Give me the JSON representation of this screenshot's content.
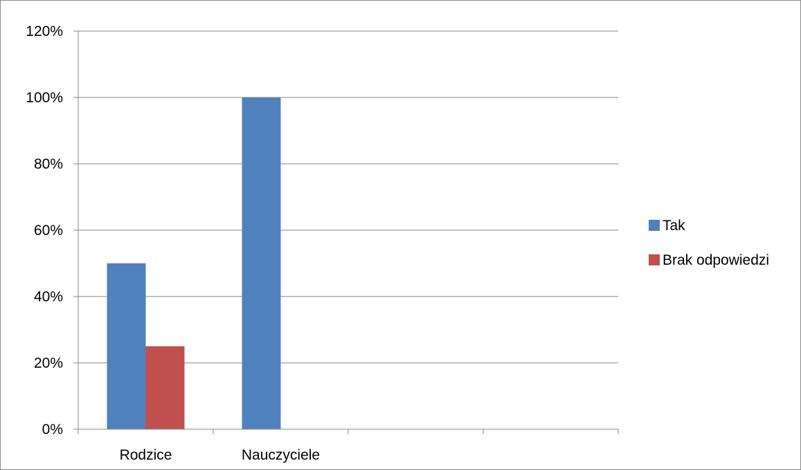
{
  "chart_data": {
    "type": "bar",
    "categories": [
      "Rodzice",
      "Nauczyciele",
      "",
      ""
    ],
    "series": [
      {
        "name": "Tak",
        "color": "#4F81BD",
        "values": [
          50,
          100,
          null,
          null
        ]
      },
      {
        "name": "Brak odpowiedzi",
        "color": "#C0504D",
        "values": [
          25,
          null,
          null,
          null
        ]
      }
    ],
    "yticks": [
      "0%",
      "20%",
      "40%",
      "60%",
      "80%",
      "100%",
      "120%"
    ],
    "ylim": [
      0,
      120
    ],
    "ytick_step": 20,
    "grid": true,
    "legend_position": "right",
    "title": "",
    "xlabel": "",
    "ylabel": ""
  }
}
